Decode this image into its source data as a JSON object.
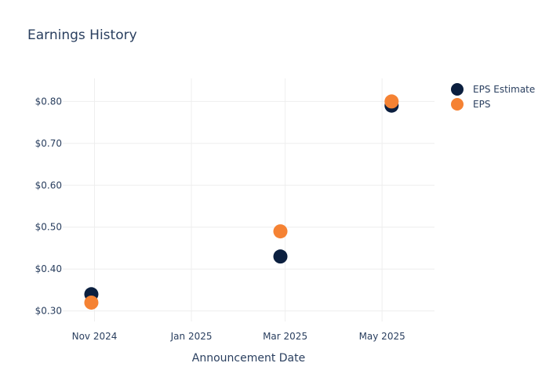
{
  "chart_data": {
    "type": "scatter",
    "title": "Earnings History",
    "xlabel": "Announcement Date",
    "ylabel": "",
    "x_ticks": [
      "Nov 2024",
      "Jan 2025",
      "Mar 2025",
      "May 2025"
    ],
    "y_ticks": [
      "$0.30",
      "$0.40",
      "$0.50",
      "$0.60",
      "$0.70",
      "$0.80"
    ],
    "ylim": [
      0.275,
      0.855
    ],
    "xlim": [
      "2024-10-12",
      "2025-06-03"
    ],
    "grid": true,
    "legend_position": "top-right",
    "series": [
      {
        "name": "EPS Estimate",
        "color": "#0b1f3f",
        "points": [
          {
            "x": "2024-10-30",
            "y": 0.34
          },
          {
            "x": "2025-02-26",
            "y": 0.43
          },
          {
            "x": "2025-05-07",
            "y": 0.79
          }
        ]
      },
      {
        "name": "EPS",
        "color": "#f58233",
        "points": [
          {
            "x": "2024-10-30",
            "y": 0.32
          },
          {
            "x": "2025-02-26",
            "y": 0.49
          },
          {
            "x": "2025-05-07",
            "y": 0.8
          }
        ]
      }
    ]
  }
}
